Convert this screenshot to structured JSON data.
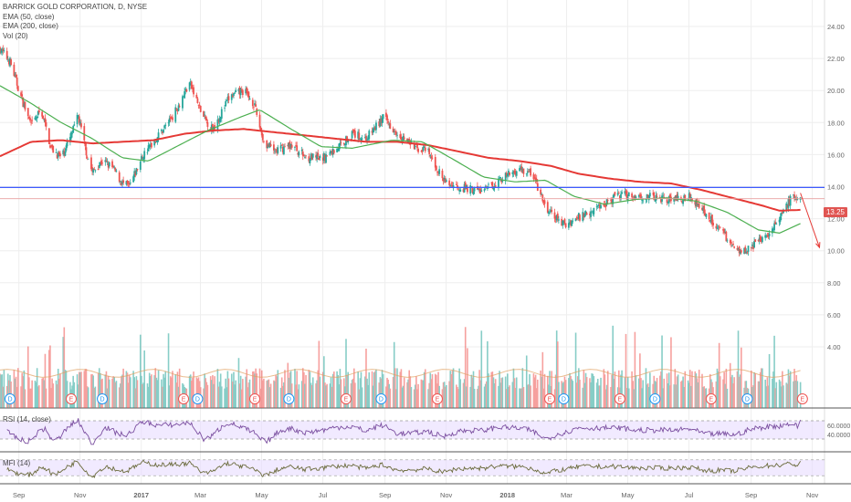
{
  "legend": {
    "title": "BARRICK GOLD CORPORATION, D, NYSE",
    "ema50": "EMA (50, close)",
    "ema200": "EMA (200, close)",
    "vol": "Vol (20)"
  },
  "rsi_label": "RSI (14, close)",
  "mfi_label": "MFI (14)",
  "last_price_label": "13.25",
  "colors": {
    "up": "#26a69a",
    "down": "#ef5350",
    "ema50": "#4caf50",
    "ema200": "#e53935",
    "support": "#3d5afe",
    "band": "#e7dcff",
    "rsi": "#7b4fa0",
    "mfi": "#6b6b3c",
    "axis_text": "#666666",
    "grid": "#eeeeee",
    "earnings": "#ef5350",
    "dividend": "#2196f3"
  },
  "chart_data": {
    "type": "candlestick",
    "title": "BARRICK GOLD CORPORATION, D, NYSE",
    "y_axis": {
      "ylim": [
        0,
        25
      ],
      "ticks": [
        "24.00",
        "22.00",
        "20.00",
        "18.00",
        "16.00",
        "14.00",
        "12.00",
        "10.00",
        "8.00",
        "6.00",
        "4.00"
      ]
    },
    "x_axis": {
      "ticks": [
        "Sep",
        "Nov",
        "2017",
        "Mar",
        "May",
        "Jul",
        "Sep",
        "Nov",
        "2018",
        "Mar",
        "May",
        "Jul",
        "Sep",
        "Nov"
      ],
      "start": "2016-08-15",
      "end": "2018-11-15"
    },
    "price_anchors": [
      [
        "2016-08-15",
        22.6
      ],
      [
        "2016-08-25",
        21.8
      ],
      [
        "2016-09-05",
        19.6
      ],
      [
        "2016-09-15",
        17.8
      ],
      [
        "2016-09-25",
        18.8
      ],
      [
        "2016-10-05",
        16.4
      ],
      [
        "2016-10-15",
        15.8
      ],
      [
        "2016-10-25",
        17.2
      ],
      [
        "2016-11-01",
        18.4
      ],
      [
        "2016-11-08",
        16.4
      ],
      [
        "2016-11-15",
        14.9
      ],
      [
        "2016-11-25",
        15.6
      ],
      [
        "2016-12-05",
        15.2
      ],
      [
        "2016-12-15",
        14.2
      ],
      [
        "2016-12-22",
        14.0
      ],
      [
        "2017-01-05",
        16.0
      ],
      [
        "2017-01-20",
        17.2
      ],
      [
        "2017-02-05",
        18.6
      ],
      [
        "2017-02-20",
        20.5
      ],
      [
        "2017-03-05",
        18.4
      ],
      [
        "2017-03-15",
        17.6
      ],
      [
        "2017-04-01",
        19.6
      ],
      [
        "2017-04-15",
        20.0
      ],
      [
        "2017-04-25",
        19.2
      ],
      [
        "2017-05-05",
        16.8
      ],
      [
        "2017-05-15",
        16.2
      ],
      [
        "2017-06-01",
        16.6
      ],
      [
        "2017-06-15",
        15.9
      ],
      [
        "2017-07-01",
        15.7
      ],
      [
        "2017-07-15",
        16.3
      ],
      [
        "2017-08-01",
        17.3
      ],
      [
        "2017-08-15",
        17.0
      ],
      [
        "2017-09-01",
        18.3
      ],
      [
        "2017-09-12",
        17.6
      ],
      [
        "2017-10-01",
        16.5
      ],
      [
        "2017-10-15",
        16.2
      ],
      [
        "2017-11-01",
        14.3
      ],
      [
        "2017-11-15",
        14.0
      ],
      [
        "2017-12-10",
        13.7
      ],
      [
        "2017-12-25",
        14.4
      ],
      [
        "2018-01-15",
        15.1
      ],
      [
        "2018-01-28",
        14.8
      ],
      [
        "2018-02-10",
        12.6
      ],
      [
        "2018-03-01",
        11.6
      ],
      [
        "2018-03-15",
        12.1
      ],
      [
        "2018-04-05",
        12.8
      ],
      [
        "2018-04-25",
        13.5
      ],
      [
        "2018-05-15",
        13.4
      ],
      [
        "2018-06-01",
        13.3
      ],
      [
        "2018-06-20",
        13.2
      ],
      [
        "2018-07-05",
        13.4
      ],
      [
        "2018-07-20",
        12.3
      ],
      [
        "2018-08-05",
        11.2
      ],
      [
        "2018-08-15",
        10.3
      ],
      [
        "2018-08-25",
        10.0
      ],
      [
        "2018-09-05",
        10.3
      ],
      [
        "2018-09-15",
        10.8
      ],
      [
        "2018-10-01",
        11.9
      ],
      [
        "2018-10-08",
        12.8
      ],
      [
        "2018-10-15",
        13.4
      ],
      [
        "2018-10-18",
        13.2
      ],
      [
        "2018-10-22",
        13.25
      ]
    ],
    "ema50_anchors": [
      [
        "2016-08-15",
        20.3
      ],
      [
        "2016-09-15",
        19.2
      ],
      [
        "2016-10-15",
        18.0
      ],
      [
        "2016-11-15",
        17.0
      ],
      [
        "2016-12-15",
        15.8
      ],
      [
        "2017-01-10",
        15.6
      ],
      [
        "2017-02-10",
        16.6
      ],
      [
        "2017-03-10",
        17.5
      ],
      [
        "2017-04-10",
        18.3
      ],
      [
        "2017-05-01",
        18.8
      ],
      [
        "2017-06-01",
        17.6
      ],
      [
        "2017-07-01",
        16.5
      ],
      [
        "2017-08-01",
        16.4
      ],
      [
        "2017-09-10",
        16.9
      ],
      [
        "2017-10-10",
        16.8
      ],
      [
        "2017-11-10",
        15.7
      ],
      [
        "2017-12-10",
        14.6
      ],
      [
        "2018-01-10",
        14.3
      ],
      [
        "2018-02-10",
        14.4
      ],
      [
        "2018-03-10",
        13.4
      ],
      [
        "2018-04-10",
        12.9
      ],
      [
        "2018-05-10",
        13.2
      ],
      [
        "2018-06-10",
        13.3
      ],
      [
        "2018-07-10",
        13.1
      ],
      [
        "2018-08-10",
        12.4
      ],
      [
        "2018-09-10",
        11.3
      ],
      [
        "2018-10-01",
        11.1
      ],
      [
        "2018-10-22",
        11.7
      ]
    ],
    "ema200_anchors": [
      [
        "2016-08-15",
        15.9
      ],
      [
        "2016-09-15",
        16.8
      ],
      [
        "2016-10-15",
        16.9
      ],
      [
        "2016-11-15",
        16.7
      ],
      [
        "2016-12-15",
        16.8
      ],
      [
        "2017-01-15",
        16.9
      ],
      [
        "2017-02-15",
        17.3
      ],
      [
        "2017-03-15",
        17.5
      ],
      [
        "2017-04-15",
        17.6
      ],
      [
        "2017-05-15",
        17.4
      ],
      [
        "2017-06-15",
        17.2
      ],
      [
        "2017-07-15",
        17.0
      ],
      [
        "2017-08-15",
        16.8
      ],
      [
        "2017-09-15",
        16.8
      ],
      [
        "2017-10-15",
        16.6
      ],
      [
        "2017-11-15",
        16.2
      ],
      [
        "2017-12-15",
        15.8
      ],
      [
        "2018-01-15",
        15.6
      ],
      [
        "2018-02-15",
        15.3
      ],
      [
        "2018-03-15",
        14.8
      ],
      [
        "2018-04-15",
        14.5
      ],
      [
        "2018-05-15",
        14.3
      ],
      [
        "2018-06-15",
        14.2
      ],
      [
        "2018-07-15",
        13.8
      ],
      [
        "2018-08-15",
        13.3
      ],
      [
        "2018-09-15",
        12.8
      ],
      [
        "2018-10-01",
        12.5
      ],
      [
        "2018-10-22",
        12.55
      ]
    ],
    "support_level": 13.95,
    "last_price": 13.25,
    "projection": {
      "from": [
        "2018-10-22",
        13.6
      ],
      "to": [
        "2018-11-10",
        10.2
      ]
    },
    "volume_ylim": [
      0,
      8
    ],
    "events": [
      {
        "date": "2016-08-25",
        "type": "D"
      },
      {
        "date": "2016-10-25",
        "type": "E"
      },
      {
        "date": "2016-11-25",
        "type": "D"
      },
      {
        "date": "2017-02-14",
        "type": "E"
      },
      {
        "date": "2017-02-28",
        "type": "D"
      },
      {
        "date": "2017-04-26",
        "type": "E"
      },
      {
        "date": "2017-05-30",
        "type": "D"
      },
      {
        "date": "2017-07-26",
        "type": "E"
      },
      {
        "date": "2017-08-30",
        "type": "D"
      },
      {
        "date": "2017-10-25",
        "type": "E"
      },
      {
        "date": "2018-02-14",
        "type": "E"
      },
      {
        "date": "2018-02-28",
        "type": "D"
      },
      {
        "date": "2018-04-25",
        "type": "E"
      },
      {
        "date": "2018-05-30",
        "type": "D"
      },
      {
        "date": "2018-07-25",
        "type": "E"
      },
      {
        "date": "2018-08-30",
        "type": "D"
      },
      {
        "date": "2018-10-24",
        "type": "E"
      }
    ],
    "rsi": {
      "label": "RSI (14, close)",
      "ticks": [
        "60.0000",
        "40.0000"
      ],
      "band": [
        30,
        70
      ],
      "last": 72
    },
    "mfi": {
      "label": "MFI (14)",
      "band": [
        20,
        80
      ],
      "last": 75
    }
  }
}
